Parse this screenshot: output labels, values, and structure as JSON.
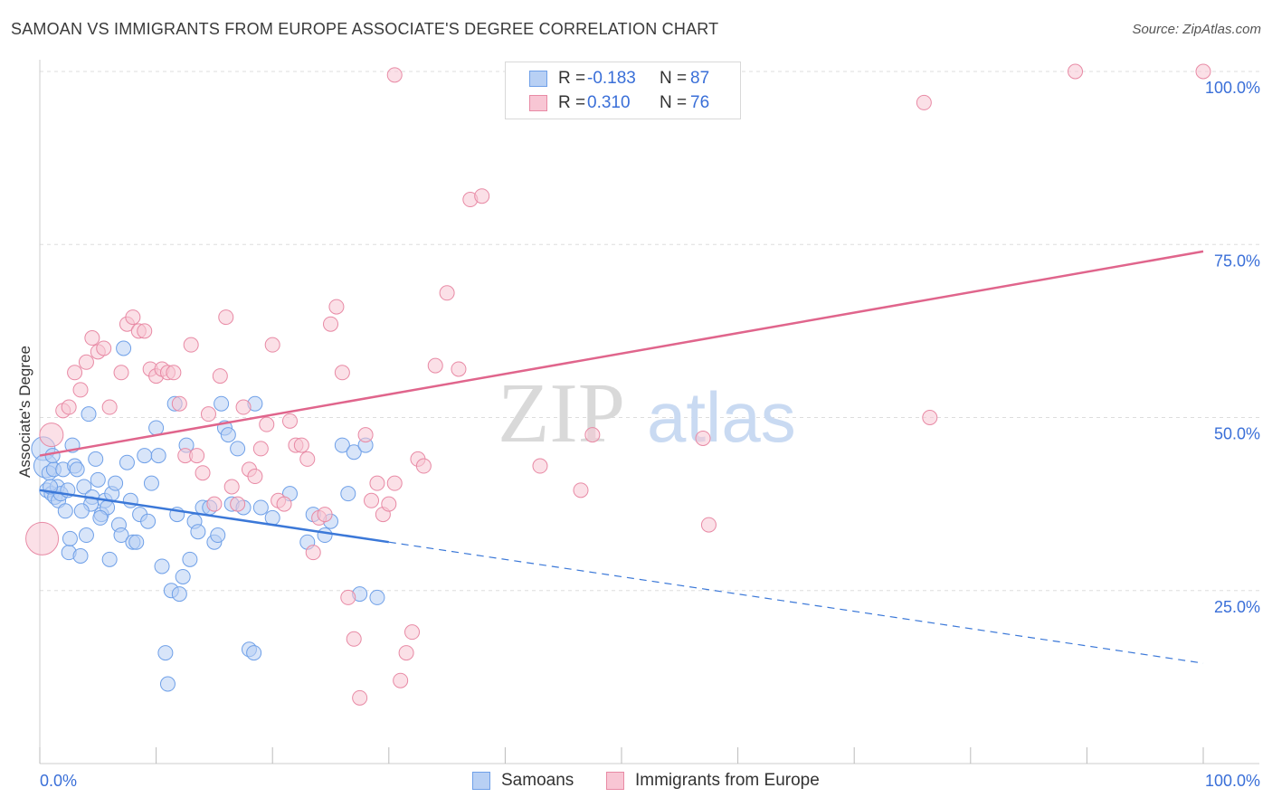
{
  "title": "SAMOAN VS IMMIGRANTS FROM EUROPE ASSOCIATE'S DEGREE CORRELATION CHART",
  "source": "Source: ZipAtlas.com",
  "watermark": {
    "zip": "ZIP",
    "atlas": "atlas"
  },
  "legend": {
    "rows": [
      {
        "r_label": "R =",
        "r_value": "-0.183",
        "n_label": "N =",
        "n_value": "87",
        "color": "#6fa0e8",
        "fill": "#b8d0f4"
      },
      {
        "r_label": "R =",
        "r_value": "0.310",
        "n_label": "N =",
        "n_value": "76",
        "color": "#e88aa5",
        "fill": "#f8c6d4"
      }
    ]
  },
  "bottom_legend": [
    {
      "label": "Samoans",
      "color": "#6fa0e8",
      "fill": "#b8d0f4"
    },
    {
      "label": "Immigrants from Europe",
      "color": "#e88aa5",
      "fill": "#f8c6d4"
    }
  ],
  "chart_data": {
    "type": "scatter",
    "title": "SAMOAN VS IMMIGRANTS FROM EUROPE ASSOCIATE'S DEGREE CORRELATION CHART",
    "xlabel": "",
    "ylabel": "Associate's Degree",
    "xlim": [
      0,
      100
    ],
    "ylim": [
      0,
      100
    ],
    "x_tick_labels": [
      "0.0%",
      "100.0%"
    ],
    "y_tick_labels": [
      "25.0%",
      "50.0%",
      "75.0%",
      "100.0%"
    ],
    "y_ticks": [
      25,
      50,
      75,
      100
    ],
    "grid": true,
    "series": [
      {
        "name": "Samoans",
        "color": "#3b78d8",
        "fill": "#b8d0f4",
        "stroke": "#6fa0e8",
        "trend": {
          "x0": 0,
          "y0": 39.5,
          "x1": 30,
          "y1": 32.0,
          "dash_to_x": 100,
          "dash_to_y": 14.5
        },
        "points": [
          [
            0.3,
            45.5
          ],
          [
            0.5,
            43
          ],
          [
            0.6,
            39.5
          ],
          [
            0.8,
            42
          ],
          [
            1.0,
            39
          ],
          [
            1.2,
            42.5
          ],
          [
            1.3,
            38.5
          ],
          [
            1.5,
            40
          ],
          [
            1.6,
            38
          ],
          [
            1.8,
            39
          ],
          [
            2.0,
            42.5
          ],
          [
            2.2,
            36.5
          ],
          [
            2.5,
            30.5
          ],
          [
            2.6,
            32.5
          ],
          [
            2.8,
            46
          ],
          [
            3.0,
            43
          ],
          [
            3.2,
            42.5
          ],
          [
            3.5,
            30
          ],
          [
            3.8,
            40
          ],
          [
            4.0,
            33
          ],
          [
            4.2,
            50.5
          ],
          [
            4.5,
            38.5
          ],
          [
            4.8,
            44
          ],
          [
            5.0,
            41
          ],
          [
            5.3,
            36
          ],
          [
            5.6,
            38
          ],
          [
            5.8,
            37
          ],
          [
            6.0,
            29.5
          ],
          [
            6.2,
            39
          ],
          [
            6.5,
            40.5
          ],
          [
            6.8,
            34.5
          ],
          [
            7.0,
            33
          ],
          [
            7.2,
            60
          ],
          [
            7.5,
            43.5
          ],
          [
            7.8,
            38
          ],
          [
            8.0,
            32
          ],
          [
            8.3,
            32
          ],
          [
            8.6,
            36
          ],
          [
            9.0,
            44.5
          ],
          [
            9.3,
            35
          ],
          [
            9.6,
            40.5
          ],
          [
            10.0,
            48.5
          ],
          [
            10.2,
            44.5
          ],
          [
            10.5,
            28.5
          ],
          [
            10.8,
            16
          ],
          [
            11.0,
            11.5
          ],
          [
            11.3,
            25
          ],
          [
            11.6,
            52
          ],
          [
            11.8,
            36
          ],
          [
            12.0,
            24.5
          ],
          [
            12.3,
            27
          ],
          [
            12.6,
            46
          ],
          [
            12.9,
            29.5
          ],
          [
            13.3,
            35
          ],
          [
            13.6,
            33.5
          ],
          [
            14.0,
            37
          ],
          [
            14.6,
            37
          ],
          [
            15.0,
            32
          ],
          [
            15.3,
            33
          ],
          [
            15.6,
            52
          ],
          [
            15.9,
            48.5
          ],
          [
            16.2,
            47.5
          ],
          [
            16.5,
            37.5
          ],
          [
            17.0,
            45.5
          ],
          [
            17.5,
            37
          ],
          [
            18.0,
            16.5
          ],
          [
            18.4,
            16
          ],
          [
            18.5,
            52
          ],
          [
            20.0,
            35.5
          ],
          [
            21.5,
            39
          ],
          [
            23.0,
            32
          ],
          [
            23.5,
            36
          ],
          [
            24.5,
            33
          ],
          [
            25.0,
            35
          ],
          [
            26.0,
            46
          ],
          [
            27.0,
            45
          ],
          [
            28.0,
            46
          ],
          [
            29.0,
            24
          ],
          [
            27.5,
            24.5
          ],
          [
            26.5,
            39
          ],
          [
            19.0,
            37
          ],
          [
            5.2,
            35.5
          ],
          [
            4.4,
            37.5
          ],
          [
            3.6,
            36.5
          ],
          [
            1.1,
            44.5
          ],
          [
            0.9,
            40
          ],
          [
            2.4,
            39.5
          ]
        ]
      },
      {
        "name": "Immigrants from Europe",
        "color": "#e0658c",
        "fill": "#f8c6d4",
        "stroke": "#e88aa5",
        "trend": {
          "x0": 0,
          "y0": 44.5,
          "x1": 100,
          "y1": 74.0
        },
        "points": [
          [
            0.2,
            32.5
          ],
          [
            1.0,
            47.5
          ],
          [
            2.0,
            51
          ],
          [
            2.5,
            51.5
          ],
          [
            3.0,
            56.5
          ],
          [
            3.5,
            54
          ],
          [
            4.0,
            58
          ],
          [
            4.5,
            61.5
          ],
          [
            5.0,
            59.5
          ],
          [
            5.5,
            60
          ],
          [
            6.0,
            51.5
          ],
          [
            7.0,
            56.5
          ],
          [
            7.5,
            63.5
          ],
          [
            8.0,
            64.5
          ],
          [
            8.5,
            62.5
          ],
          [
            9.0,
            62.5
          ],
          [
            9.5,
            57
          ],
          [
            10.0,
            56
          ],
          [
            10.5,
            57
          ],
          [
            11.0,
            56.5
          ],
          [
            11.5,
            56.5
          ],
          [
            12.0,
            52
          ],
          [
            12.5,
            44.5
          ],
          [
            13.0,
            60.5
          ],
          [
            13.5,
            44.5
          ],
          [
            14.0,
            42
          ],
          [
            14.5,
            50.5
          ],
          [
            15.0,
            37.5
          ],
          [
            15.5,
            56
          ],
          [
            16.0,
            64.5
          ],
          [
            16.5,
            40
          ],
          [
            17.0,
            37.5
          ],
          [
            17.5,
            51.5
          ],
          [
            18.0,
            42.5
          ],
          [
            18.5,
            41.5
          ],
          [
            19.0,
            45.5
          ],
          [
            19.5,
            49
          ],
          [
            20.0,
            60.5
          ],
          [
            20.5,
            38
          ],
          [
            21.0,
            37.5
          ],
          [
            21.5,
            49.5
          ],
          [
            22.0,
            46
          ],
          [
            22.5,
            46
          ],
          [
            23.0,
            44
          ],
          [
            23.5,
            30.5
          ],
          [
            24.0,
            35.5
          ],
          [
            24.5,
            36
          ],
          [
            25.0,
            63.5
          ],
          [
            25.5,
            66
          ],
          [
            26.0,
            56.5
          ],
          [
            26.5,
            24
          ],
          [
            27.0,
            18
          ],
          [
            27.5,
            9.5
          ],
          [
            28.0,
            47.5
          ],
          [
            28.5,
            38
          ],
          [
            29.0,
            40.5
          ],
          [
            29.5,
            36
          ],
          [
            30.0,
            37.5
          ],
          [
            30.5,
            40.5
          ],
          [
            31.0,
            12
          ],
          [
            31.5,
            16
          ],
          [
            32.0,
            19
          ],
          [
            32.5,
            44
          ],
          [
            33.0,
            43
          ],
          [
            34.0,
            57.5
          ],
          [
            35.0,
            68
          ],
          [
            36.0,
            57
          ],
          [
            37.0,
            81.5
          ],
          [
            38.0,
            82
          ],
          [
            43.0,
            43
          ],
          [
            46.5,
            39.5
          ],
          [
            47.5,
            47.5
          ],
          [
            57.0,
            47
          ],
          [
            57.5,
            34.5
          ],
          [
            76.0,
            95.5
          ],
          [
            30.5,
            99.5
          ]
        ],
        "extra_points": [
          [
            89.0,
            100
          ],
          [
            100.0,
            100
          ],
          [
            76.5,
            50
          ]
        ]
      }
    ]
  }
}
